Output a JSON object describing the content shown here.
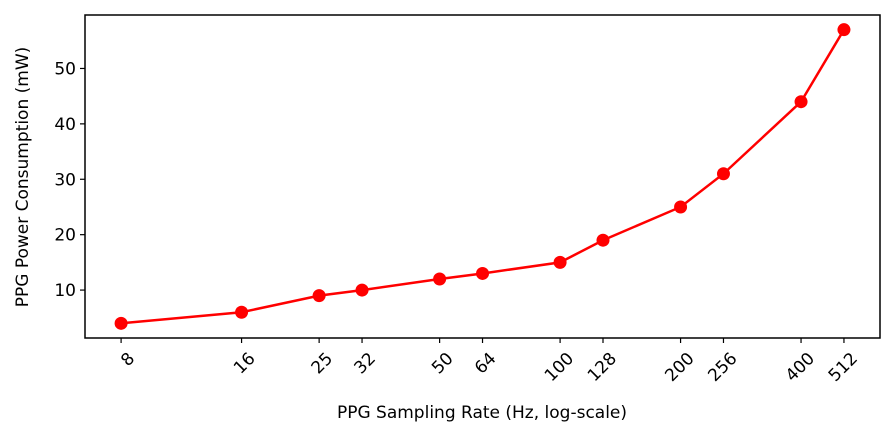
{
  "chart_data": {
    "type": "line",
    "title": "",
    "xlabel": "PPG Sampling Rate (Hz, log-scale)",
    "ylabel": "PPG Power Consumption (mW)",
    "xscale": "log",
    "x": [
      8,
      16,
      25,
      32,
      50,
      64,
      100,
      128,
      200,
      256,
      400,
      512
    ],
    "xtick_labels": [
      "8",
      "16",
      "25",
      "32",
      "50",
      "64",
      "100",
      "128",
      "200",
      "256",
      "400",
      "512"
    ],
    "series": [
      {
        "values": [
          4,
          6,
          9,
          10,
          12,
          13,
          15,
          19,
          25,
          31,
          44,
          57
        ],
        "color": "#ff0000",
        "marker": "circle"
      }
    ],
    "yticks": [
      10,
      20,
      30,
      40,
      50
    ],
    "ytick_labels": [
      "10",
      "20",
      "30",
      "40",
      "50"
    ],
    "xlim": [
      6.5,
      630
    ],
    "ylim": [
      1.35,
      59.65
    ],
    "grid": false,
    "legend": "none"
  }
}
